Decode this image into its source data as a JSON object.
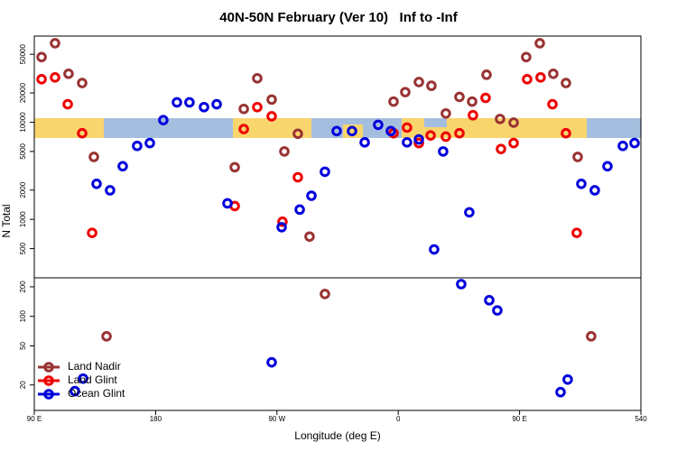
{
  "chart_data": [
    {
      "type": "scatter",
      "title": "40N-50N February (Ver 10)   Inf to -Inf",
      "ylabel": "N Total",
      "log_y": true,
      "xlim": [
        90,
        540
      ],
      "ylim": [
        250,
        77000
      ],
      "yticks": [
        500,
        1000,
        2000,
        5000,
        10000,
        20000,
        50000
      ],
      "series": [
        {
          "color": "#993333",
          "x": [
            95.4,
            105.4,
            115.4,
            125.5,
            134.2,
            238.7,
            245.4,
            255.4,
            266.1,
            275.5,
            285.5,
            294.2,
            356.5,
            365.2,
            375.3,
            384.6,
            395.3,
            405.4,
            414.8,
            425.5,
            435.5,
            445.6,
            454.9,
            465.0,
            475.0,
            484.4,
            493.1
          ],
          "values": [
            46800,
            65000,
            31500,
            25300,
            4390,
            3440,
            13700,
            28300,
            17100,
            5000,
            7600,
            665,
            16300,
            20400,
            25900,
            23700,
            12300,
            18200,
            16300,
            30800,
            10800,
            9900,
            46800,
            65000,
            31500,
            25300,
            4390
          ]
        },
        {
          "color": "#ee0000",
          "x": [
            95.4,
            105.4,
            114.8,
            125.5,
            132.9,
            238.7,
            245.4,
            255.4,
            266.1,
            274.1,
            285.5,
            356.5,
            366.5,
            375.3,
            384.0,
            395.3,
            405.4,
            415.4,
            424.8,
            436.2,
            445.6,
            455.6,
            465.6,
            474.4,
            484.4,
            492.4
          ],
          "values": [
            27700,
            28900,
            15300,
            7700,
            725,
            1370,
            8500,
            14300,
            11500,
            945,
            2710,
            7700,
            8800,
            6100,
            7300,
            7100,
            7700,
            11800,
            17800,
            5300,
            6100,
            27700,
            28900,
            15300,
            7700,
            725
          ]
        },
        {
          "color": "#0000dd",
          "x": [
            136.2,
            146.2,
            155.6,
            166.3,
            175.7,
            185.7,
            195.8,
            205.1,
            215.9,
            225.3,
            233.3,
            273.5,
            286.9,
            295.6,
            305.6,
            314.3,
            325.7,
            335.1,
            345.1,
            354.5,
            366.5,
            375.3,
            386.6,
            393.3,
            412.7,
            495.8,
            505.8,
            515.2,
            526.6,
            535.3
          ],
          "values": [
            2320,
            1990,
            3520,
            5700,
            6100,
            10500,
            16000,
            16000,
            14300,
            15300,
            1460,
            830,
            1260,
            1750,
            3090,
            8100,
            8100,
            6200,
            9400,
            8100,
            6200,
            6650,
            490,
            5000,
            1180,
            2320,
            1990,
            3520,
            5700,
            6100
          ]
        }
      ]
    },
    {
      "type": "scatter",
      "xlabel": "Longitude (deg E)",
      "log_y": true,
      "xlim": [
        90,
        540
      ],
      "ylim": [
        11,
        247
      ],
      "xticks": [
        {
          "value": 90,
          "label": "90 E"
        },
        180,
        {
          "value": 270,
          "label": "90 W"
        },
        {
          "value": 360,
          "label": "0"
        },
        {
          "value": 450,
          "label": "90 E"
        },
        540
      ],
      "yticks": [
        20,
        50,
        100,
        200
      ],
      "legend": "lower left",
      "series": [
        {
          "name": "Land Nadir",
          "color": "#993333",
          "x": [
            143.6,
            305.6,
            503.1
          ],
          "values": [
            62.6,
            169,
            62.6
          ]
        },
        {
          "name": "Land Glint",
          "color": "#ee0000",
          "x": [],
          "values": []
        },
        {
          "name": "Ocean Glint",
          "color": "#0000dd",
          "x": [
            120.1,
            126.2,
            266.1,
            406.7,
            427.5,
            433.5,
            480.4,
            485.7
          ],
          "values": [
            17.3,
            23.2,
            34,
            213,
            146,
            115,
            16.9,
            22.7
          ]
        }
      ]
    }
  ]
}
